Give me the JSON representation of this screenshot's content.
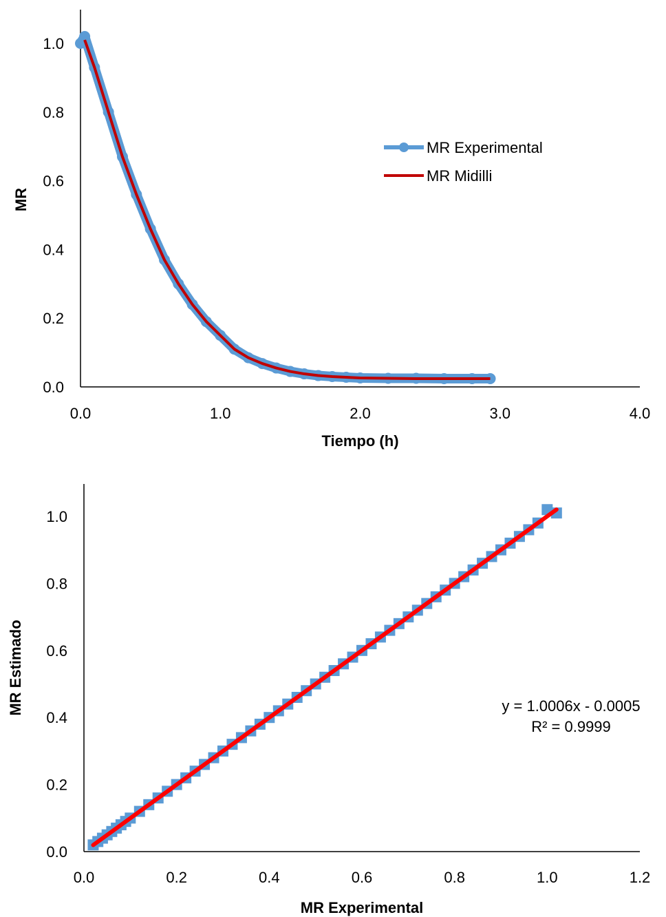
{
  "chart_data": [
    {
      "type": "line",
      "title": "",
      "xlabel": "Tiempo (h)",
      "ylabel": "MR",
      "xlim": [
        0,
        4
      ],
      "ylim": [
        0,
        1.1
      ],
      "x_ticks": [
        "0.0",
        "1.0",
        "2.0",
        "3.0",
        "4.0"
      ],
      "y_ticks": [
        "0.0",
        "0.2",
        "0.4",
        "0.6",
        "0.8",
        "1.0"
      ],
      "grid": false,
      "legend_position": "right",
      "series": [
        {
          "name": "MR Experimental",
          "color": "#5B9BD5",
          "marker": "circle",
          "x": [
            0.0,
            0.03,
            0.1,
            0.2,
            0.3,
            0.4,
            0.5,
            0.6,
            0.7,
            0.8,
            0.9,
            1.0,
            1.1,
            1.2,
            1.3,
            1.4,
            1.5,
            1.6,
            1.7,
            1.8,
            1.9,
            2.0,
            2.2,
            2.4,
            2.6,
            2.8,
            2.93
          ],
          "y": [
            1.0,
            1.02,
            0.93,
            0.8,
            0.67,
            0.56,
            0.46,
            0.37,
            0.3,
            0.24,
            0.19,
            0.15,
            0.11,
            0.085,
            0.068,
            0.055,
            0.045,
            0.038,
            0.033,
            0.03,
            0.028,
            0.026,
            0.025,
            0.025,
            0.024,
            0.024,
            0.024
          ]
        },
        {
          "name": "MR Midilli",
          "color": "#C00000",
          "marker": "none",
          "x": [
            0.03,
            0.1,
            0.2,
            0.3,
            0.4,
            0.5,
            0.6,
            0.7,
            0.8,
            0.9,
            1.0,
            1.1,
            1.2,
            1.3,
            1.4,
            1.5,
            1.6,
            1.7,
            1.8,
            1.9,
            2.0,
            2.2,
            2.4,
            2.6,
            2.8,
            2.93
          ],
          "y": [
            1.01,
            0.93,
            0.8,
            0.67,
            0.56,
            0.46,
            0.37,
            0.3,
            0.24,
            0.19,
            0.15,
            0.11,
            0.085,
            0.068,
            0.055,
            0.045,
            0.038,
            0.033,
            0.03,
            0.028,
            0.026,
            0.025,
            0.024,
            0.024,
            0.024,
            0.024
          ]
        }
      ]
    },
    {
      "type": "scatter",
      "title": "",
      "xlabel": "MR Experimental",
      "ylabel": "MR Estimado",
      "xlim": [
        0,
        1.2
      ],
      "ylim": [
        0,
        1.1
      ],
      "x_ticks": [
        "0.0",
        "0.2",
        "0.4",
        "0.6",
        "0.8",
        "1.0",
        "1.2"
      ],
      "y_ticks": [
        "0.0",
        "0.2",
        "0.4",
        "0.6",
        "0.8",
        "1.0"
      ],
      "grid": false,
      "annotation": [
        "y = 1.0006x - 0.0005",
        "R² = 0.9999"
      ],
      "points_color": "#5B9BD5",
      "trend_color": "#FF0000",
      "trendline": {
        "slope": 1.0006,
        "intercept": -0.0005,
        "x_range": [
          0.02,
          1.02
        ]
      },
      "points": {
        "x": [
          0.02,
          0.03,
          0.04,
          0.05,
          0.06,
          0.07,
          0.08,
          0.09,
          0.1,
          0.12,
          0.14,
          0.16,
          0.18,
          0.2,
          0.22,
          0.24,
          0.26,
          0.28,
          0.3,
          0.32,
          0.34,
          0.36,
          0.38,
          0.4,
          0.42,
          0.44,
          0.46,
          0.48,
          0.5,
          0.52,
          0.54,
          0.56,
          0.58,
          0.6,
          0.62,
          0.64,
          0.66,
          0.68,
          0.7,
          0.72,
          0.74,
          0.76,
          0.78,
          0.8,
          0.82,
          0.84,
          0.86,
          0.88,
          0.9,
          0.92,
          0.94,
          0.96,
          0.98,
          1.0,
          1.02
        ],
        "y": [
          0.02,
          0.03,
          0.04,
          0.05,
          0.06,
          0.07,
          0.08,
          0.09,
          0.1,
          0.12,
          0.14,
          0.16,
          0.18,
          0.2,
          0.22,
          0.24,
          0.26,
          0.28,
          0.3,
          0.32,
          0.34,
          0.36,
          0.38,
          0.4,
          0.42,
          0.44,
          0.46,
          0.48,
          0.5,
          0.52,
          0.54,
          0.56,
          0.58,
          0.6,
          0.62,
          0.64,
          0.66,
          0.68,
          0.7,
          0.72,
          0.74,
          0.76,
          0.78,
          0.8,
          0.82,
          0.84,
          0.86,
          0.88,
          0.9,
          0.92,
          0.94,
          0.96,
          0.98,
          1.02,
          1.01
        ]
      }
    }
  ]
}
